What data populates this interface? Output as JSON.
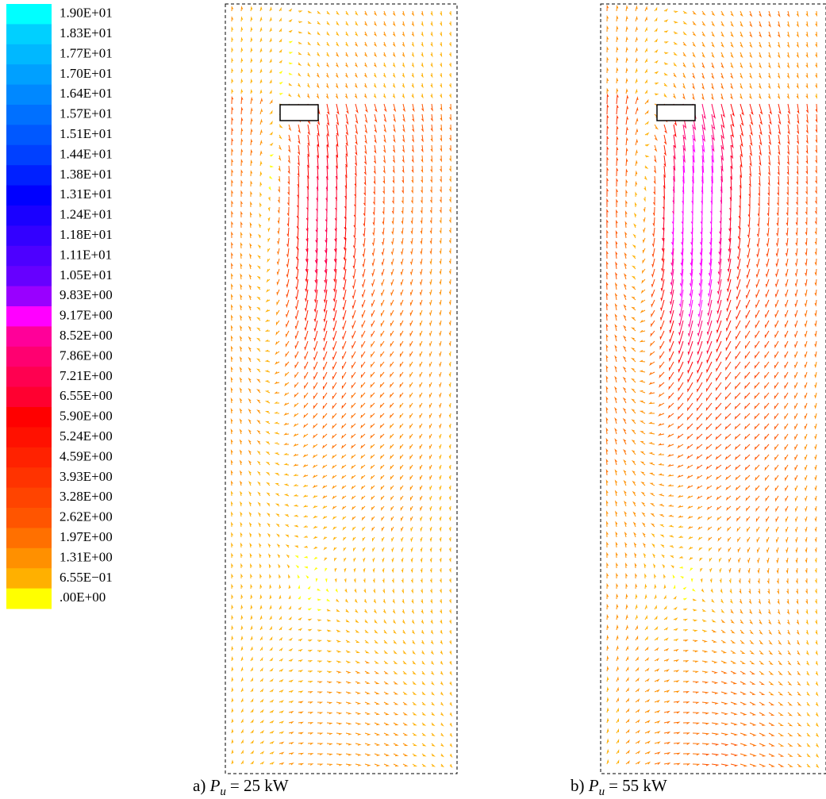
{
  "legend": {
    "labels": [
      "1.90E+01",
      "1.83E+01",
      "1.77E+01",
      "1.70E+01",
      "1.64E+01",
      "1.57E+01",
      "1.51E+01",
      "1.44E+01",
      "1.38E+01",
      "1.31E+01",
      "1.24E+01",
      "1.18E+01",
      "1.11E+01",
      "1.05E+01",
      "9.83E+00",
      "9.17E+00",
      "8.52E+00",
      "7.86E+00",
      "7.21E+00",
      "6.55E+00",
      "5.90E+00",
      "5.24E+00",
      "4.59E+00",
      "3.93E+00",
      "3.28E+00",
      "2.62E+00",
      "1.97E+00",
      "1.31E+00",
      "6.55E−01",
      ".00E+00"
    ],
    "colors": [
      "#00ffff",
      "#00d0ff",
      "#00b8ff",
      "#00a0ff",
      "#0088ff",
      "#0070ff",
      "#0058ff",
      "#0040ff",
      "#0020ff",
      "#0000ff",
      "#1a00ff",
      "#3300ff",
      "#4d00ff",
      "#6600ff",
      "#9900ff",
      "#ff00ff",
      "#ff0099",
      "#ff0070",
      "#ff0050",
      "#ff0030",
      "#ff0000",
      "#ff1100",
      "#ff2200",
      "#ff3300",
      "#ff4400",
      "#ff5500",
      "#ff7000",
      "#ff9000",
      "#ffb000",
      "#ffff00"
    ]
  },
  "panels": [
    {
      "prefix": "a)",
      "symbol": "P",
      "subscript": "u",
      "suffix": "= 25 kW"
    },
    {
      "prefix": "b)",
      "symbol": "P",
      "subscript": "u",
      "suffix": "= 55 kW"
    }
  ]
}
